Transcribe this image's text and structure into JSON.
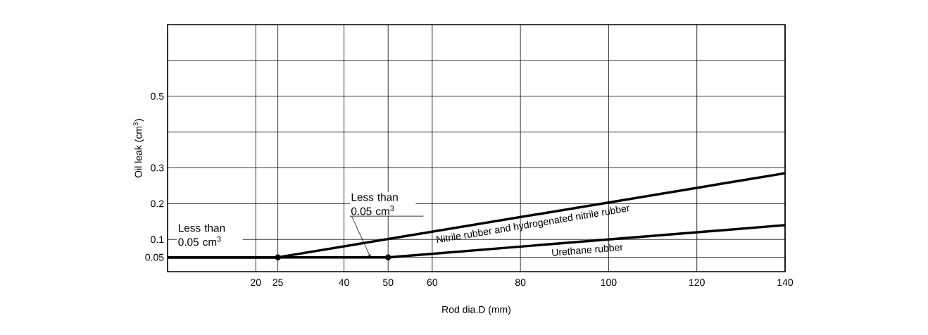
{
  "chart_data": {
    "type": "line",
    "xlabel": "Rod dia.D (mm)",
    "ylabel": "Oil leak (cm$^{3}$)",
    "xlim": [
      0,
      140
    ],
    "ylim": [
      0.01,
      0.7
    ],
    "xticks": [
      20,
      25,
      40,
      50,
      60,
      80,
      100,
      120,
      140
    ],
    "yticks": [
      0.05,
      0.1,
      0.2,
      0.3,
      {
        "value": 0.4,
        "label": null
      },
      0.5,
      {
        "value": 0.6,
        "label": null
      }
    ],
    "grid": true,
    "legend": false,
    "series": [
      {
        "name": "Nitrile rubber and hydrogenated nitrile rubber",
        "color": "#000000",
        "x": [
          0,
          25,
          140
        ],
        "values": [
          0.05,
          0.05,
          0.285
        ]
      },
      {
        "name": "Urethane rubber",
        "color": "#000000",
        "x": [
          0,
          50,
          140
        ],
        "values": [
          0.05,
          0.05,
          0.14
        ]
      },
      {
        "type": "scatter",
        "marker": "circle",
        "color": "#000000",
        "x": [
          25,
          50
        ],
        "values": [
          0.05,
          0.05
        ]
      }
    ],
    "annotations": [
      "Less than 0.05 cm$^{3}$",
      {
        "text": "Less than 0.05 cm$^{3}$",
        "x": 46,
        "y": 0.05
      }
    ]
  }
}
